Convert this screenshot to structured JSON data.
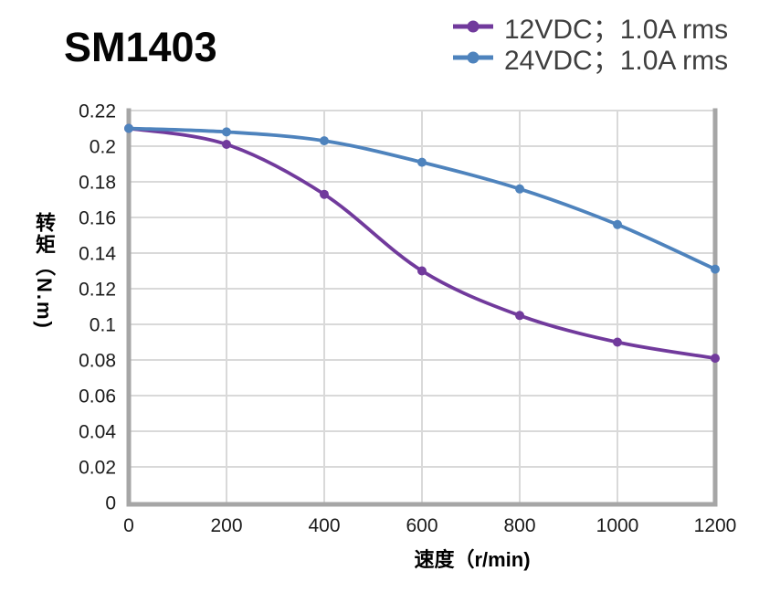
{
  "title": "SM1403",
  "legend": {
    "items": [
      {
        "label": "12VDC；1.0A rms",
        "color": "#713a9c"
      },
      {
        "label": "24VDC；1.0A rms",
        "color": "#4e83bd"
      }
    ]
  },
  "chart_data": {
    "type": "line",
    "title": "SM1403",
    "xlabel": "速度（r/min)",
    "ylabel": "转矩（N.m)",
    "x": [
      0,
      200,
      400,
      600,
      800,
      1000,
      1200
    ],
    "series": [
      {
        "name": "12VDC；1.0A rms",
        "color": "#713a9c",
        "values": [
          0.21,
          0.201,
          0.173,
          0.13,
          0.105,
          0.09,
          0.081
        ]
      },
      {
        "name": "24VDC；1.0A rms",
        "color": "#4e83bd",
        "values": [
          0.21,
          0.208,
          0.203,
          0.191,
          0.176,
          0.156,
          0.131
        ]
      }
    ],
    "xlim": [
      0,
      1200
    ],
    "ylim": [
      0,
      0.22
    ],
    "x_ticks": [
      "0",
      "200",
      "400",
      "600",
      "800",
      "1000",
      "1200"
    ],
    "y_ticks": [
      "0",
      "0.02",
      "0.04",
      "0.06",
      "0.08",
      "0.1",
      "0.12",
      "0.14",
      "0.16",
      "0.18",
      "0.2",
      "0.22"
    ],
    "grid": true,
    "legend_position": "top-right",
    "marker": "circle",
    "colors": {
      "grid": "#d9d9d9",
      "axis": "#a6a6a6",
      "tick_text": "#1a1a1a",
      "axis_label_text": "#000000",
      "legend_text": "#3f3f3f",
      "background": "#ffffff"
    }
  }
}
